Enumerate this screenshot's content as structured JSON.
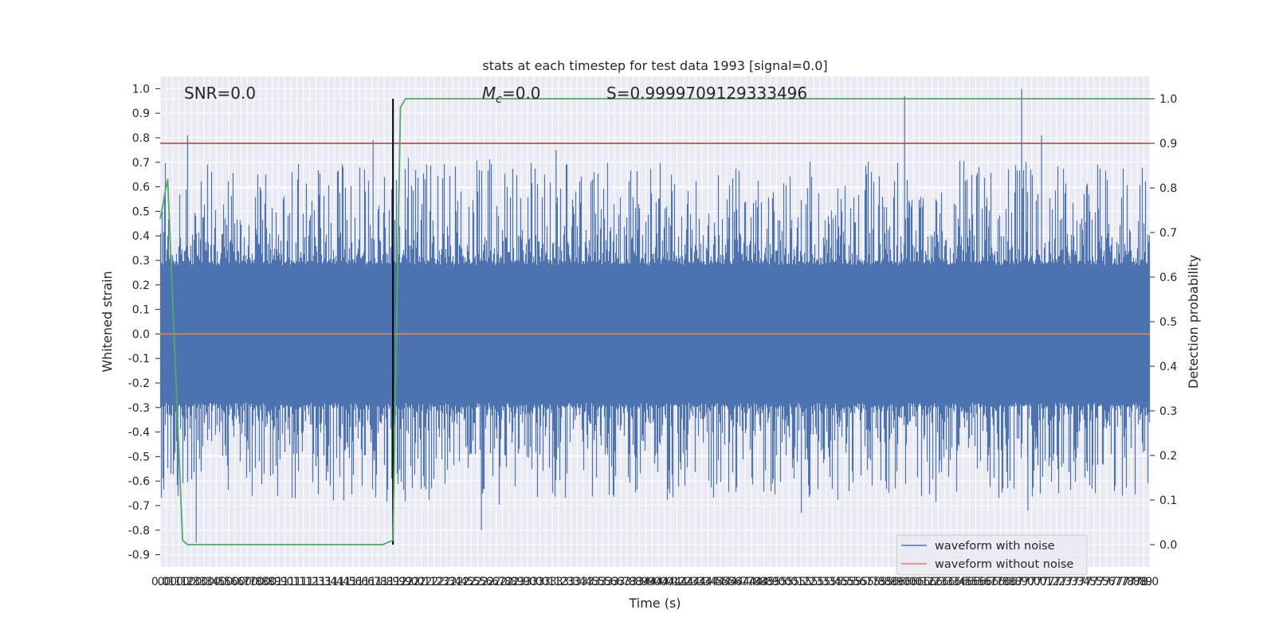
{
  "chart_data": {
    "type": "line",
    "title": "stats at each timestep for test data 1993 [signal=0.0]",
    "xlabel": "Time (s)",
    "ylabel": "Whitened strain",
    "ylabel_right": "Detection probability",
    "xlim": [
      0.0,
      7.95
    ],
    "ylim": [
      -0.95,
      1.05
    ],
    "ylim_right": [
      -0.05,
      1.05
    ],
    "x_tick_step": 0.05,
    "x_tick_count": 160,
    "y_ticks": [
      -0.9,
      -0.8,
      -0.7,
      -0.6,
      -0.5,
      -0.4,
      -0.3,
      -0.2,
      -0.1,
      0.0,
      0.1,
      0.2,
      0.3,
      0.4,
      0.5,
      0.6,
      0.7,
      0.8,
      0.9,
      1.0
    ],
    "y_ticks_right": [
      0.0,
      0.1,
      0.2,
      0.3,
      0.4,
      0.5,
      0.6,
      0.7,
      0.8,
      0.9,
      1.0
    ],
    "grid": true,
    "legend_position": "bottom-right",
    "annotations": {
      "snr": "SNR=0.0",
      "mc_symbol": "M",
      "mc_sub": "c",
      "mc_value": "=0.0",
      "s": "S=0.9999709129333496"
    },
    "series": [
      {
        "name": "waveform with noise",
        "color": "#4c72b0",
        "axis": "left",
        "kind": "dense noise",
        "band_high": [
          0.28,
          0.3
        ],
        "band_low": [
          -0.3,
          -0.28
        ],
        "peaks": [
          {
            "x": 0.22,
            "y": 0.81
          },
          {
            "x": 1.71,
            "y": 0.79
          },
          {
            "x": 3.18,
            "y": 0.75
          },
          {
            "x": 5.98,
            "y": 0.97
          },
          {
            "x": 6.92,
            "y": 1.0
          },
          {
            "x": 7.08,
            "y": 0.81
          },
          {
            "x": 0.29,
            "y": -0.85
          },
          {
            "x": 2.58,
            "y": -0.8
          },
          {
            "x": 5.15,
            "y": -0.73
          },
          {
            "x": 6.97,
            "y": -0.72
          }
        ]
      },
      {
        "name": "waveform without noise",
        "color": "#dd8452",
        "axis": "left",
        "x": [
          0.0,
          7.95
        ],
        "y": [
          0.0,
          0.0
        ]
      },
      {
        "name": "detection probability",
        "color": "#55a868",
        "axis": "right",
        "x": [
          0.0,
          0.06,
          0.18,
          0.22,
          0.3,
          1.79,
          1.87,
          1.93,
          1.97,
          2.0,
          7.95
        ],
        "y": [
          0.73,
          0.82,
          0.01,
          0.0,
          0.0,
          0.0,
          0.01,
          0.98,
          1.0,
          1.0,
          1.0
        ]
      }
    ],
    "threshold_right": {
      "y": 0.9,
      "color": "#c44e52"
    },
    "marker_line": {
      "x": 1.87,
      "y_from": 0.0,
      "y_to": 1.0,
      "color": "#000000"
    }
  }
}
